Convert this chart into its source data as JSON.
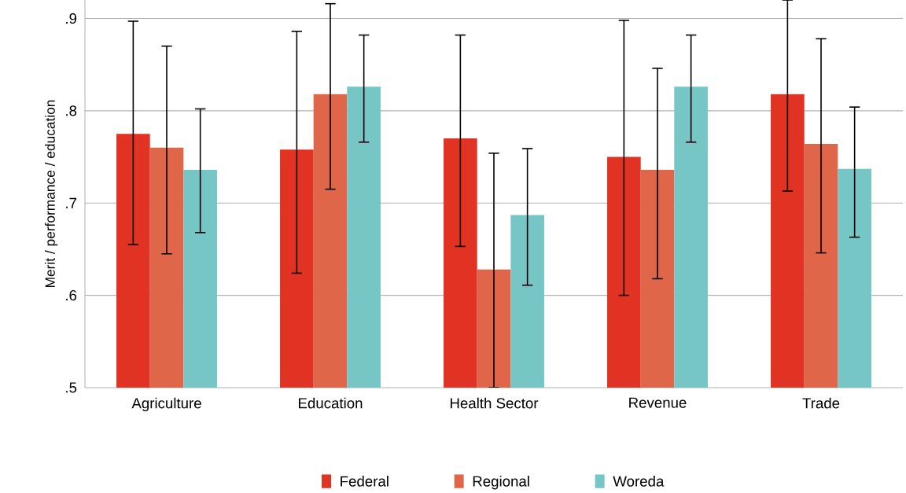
{
  "chart_data": {
    "type": "bar",
    "ylabel": "Merit / performance / education",
    "categories": [
      "Agriculture",
      "Education",
      "Health Sector",
      "Revenue",
      "Trade"
    ],
    "series": [
      {
        "name": "Federal",
        "color": "#e03323",
        "values": [
          0.775,
          0.758,
          0.77,
          0.75,
          0.818
        ],
        "errors": [
          [
            0.655,
            0.897
          ],
          [
            0.624,
            0.886
          ],
          [
            0.653,
            0.882
          ],
          [
            0.6,
            0.898
          ],
          [
            0.713,
            0.92
          ]
        ]
      },
      {
        "name": "Regional",
        "color": "#e0664a",
        "values": [
          0.76,
          0.818,
          0.628,
          0.736,
          0.764
        ],
        "errors": [
          [
            0.645,
            0.87
          ],
          [
            0.715,
            0.916
          ],
          [
            0.5,
            0.754
          ],
          [
            0.618,
            0.846
          ],
          [
            0.646,
            0.878
          ]
        ]
      },
      {
        "name": "Woreda",
        "color": "#76c6c6",
        "values": [
          0.736,
          0.826,
          0.687,
          0.826,
          0.737
        ],
        "errors": [
          [
            0.668,
            0.802
          ],
          [
            0.766,
            0.882
          ],
          [
            0.611,
            0.759
          ],
          [
            0.766,
            0.882
          ],
          [
            0.663,
            0.804
          ]
        ]
      }
    ],
    "ylim": [
      0.5,
      0.92
    ],
    "yticks": [
      {
        "value": 0.5,
        "label": ".5"
      },
      {
        "value": 0.6,
        "label": ".6"
      },
      {
        "value": 0.7,
        "label": ".7"
      },
      {
        "value": 0.8,
        "label": ".8"
      },
      {
        "value": 0.9,
        "label": ".9"
      }
    ],
    "grid": "y",
    "legend": "bottom"
  }
}
